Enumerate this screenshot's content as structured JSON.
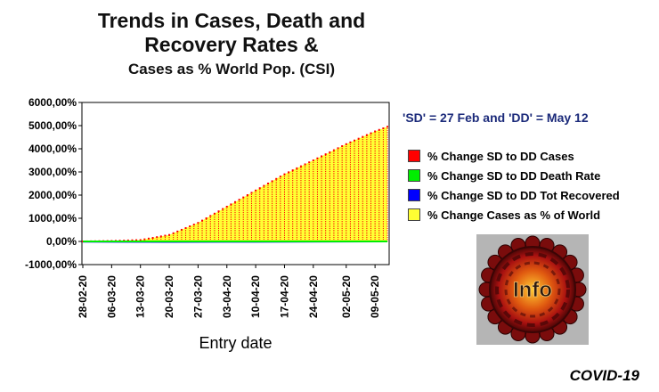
{
  "title": {
    "line1": "Trends in Cases, Death and",
    "line2": "Recovery Rates &",
    "line3": "Cases as % World Pop. (CSI)"
  },
  "note": "'SD' = 27 Feb and 'DD' = May 12",
  "legend": [
    {
      "label": "% Change SD to DD Cases",
      "color": "#ff0000"
    },
    {
      "label": "% Change SD to DD Death Rate",
      "color": "#00ee00"
    },
    {
      "label": "% Change SD to DD Tot Recovered",
      "color": "#0000ff"
    },
    {
      "label": "% Change Cases as % of World",
      "color": "#ffff33"
    }
  ],
  "logo_text": "Info",
  "brand": "COVID-19",
  "chart_data": {
    "type": "bar",
    "xlabel": "Entry date",
    "ylabel": "",
    "ylim": [
      -1000,
      6000
    ],
    "yticks": [
      "-1000,00%",
      "0,00%",
      "1000,00%",
      "2000,00%",
      "3000,00%",
      "4000,00%",
      "5000,00%",
      "6000,00%"
    ],
    "x_tick_labels": [
      "28-02-20",
      "06-03-20",
      "13-03-20",
      "20-03-20",
      "27-03-20",
      "03-04-20",
      "10-04-20",
      "17-04-20",
      "24-04-20",
      "02-05-20",
      "09-05-20"
    ],
    "x_start": "2020-02-28",
    "x_end": "2020-05-12",
    "grid": false,
    "series": [
      {
        "name": "% Change SD to DD Cases",
        "color": "#ff0000",
        "style": "dotted vertical bars",
        "points": [
          [
            "2020-02-28",
            0
          ],
          [
            "2020-03-06",
            20
          ],
          [
            "2020-03-13",
            60
          ],
          [
            "2020-03-20",
            280
          ],
          [
            "2020-03-27",
            800
          ],
          [
            "2020-04-03",
            1500
          ],
          [
            "2020-04-10",
            2200
          ],
          [
            "2020-04-17",
            2900
          ],
          [
            "2020-04-24",
            3500
          ],
          [
            "2020-05-02",
            4200
          ],
          [
            "2020-05-09",
            4750
          ],
          [
            "2020-05-12",
            4950
          ]
        ]
      },
      {
        "name": "% Change SD to DD Death Rate",
        "color": "#00ee00",
        "style": "line",
        "points": [
          [
            "2020-02-28",
            0
          ],
          [
            "2020-05-12",
            0
          ]
        ]
      },
      {
        "name": "% Change SD to DD Tot Recovered",
        "color": "#0000ff",
        "style": "line",
        "points": [
          [
            "2020-02-28",
            -10
          ],
          [
            "2020-03-20",
            -20
          ],
          [
            "2020-04-10",
            -15
          ],
          [
            "2020-05-12",
            0
          ]
        ]
      },
      {
        "name": "% Change Cases as % of World",
        "color": "#ffff33",
        "style": "filled area",
        "points": [
          [
            "2020-02-28",
            0
          ],
          [
            "2020-03-06",
            20
          ],
          [
            "2020-03-13",
            60
          ],
          [
            "2020-03-20",
            280
          ],
          [
            "2020-03-27",
            800
          ],
          [
            "2020-04-03",
            1500
          ],
          [
            "2020-04-10",
            2200
          ],
          [
            "2020-04-17",
            2900
          ],
          [
            "2020-04-24",
            3500
          ],
          [
            "2020-05-02",
            4200
          ],
          [
            "2020-05-09",
            4750
          ],
          [
            "2020-05-12",
            4950
          ]
        ]
      }
    ]
  }
}
